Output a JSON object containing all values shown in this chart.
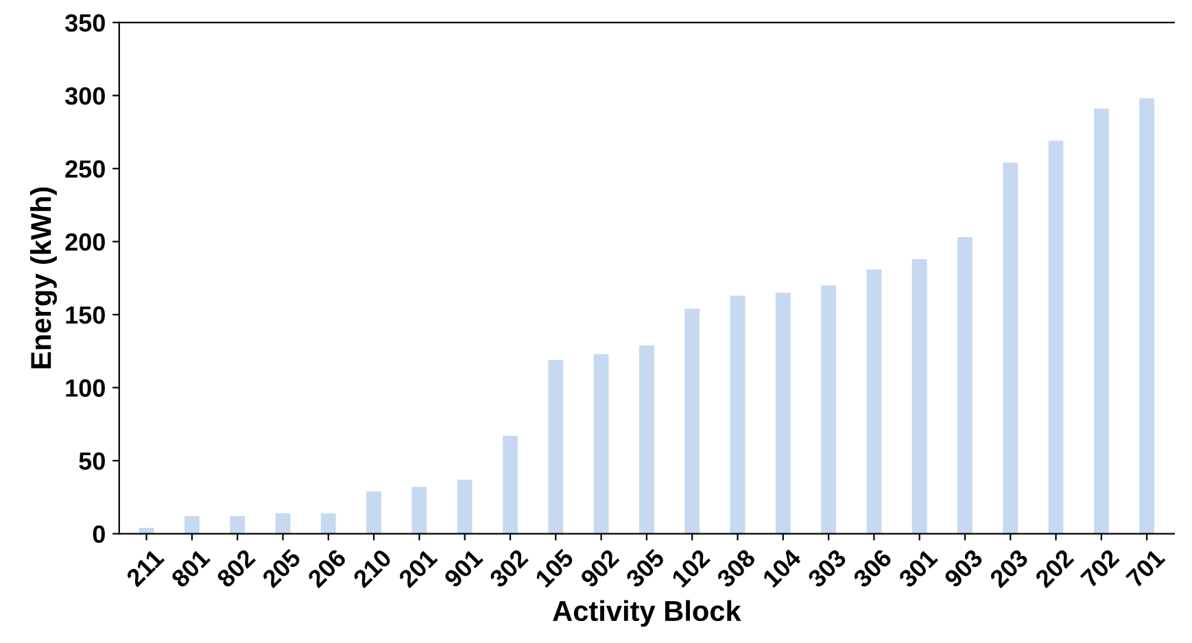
{
  "chart_data": {
    "type": "bar",
    "xlabel": "Activity Block",
    "ylabel": "Energy (kWh)",
    "categories": [
      "211",
      "801",
      "802",
      "205",
      "206",
      "210",
      "201",
      "901",
      "302",
      "105",
      "902",
      "305",
      "102",
      "308",
      "104",
      "303",
      "306",
      "301",
      "903",
      "203",
      "202",
      "702",
      "701"
    ],
    "values": [
      4,
      12,
      12,
      14,
      14,
      29,
      32,
      37,
      67,
      119,
      123,
      129,
      154,
      163,
      165,
      170,
      181,
      188,
      203,
      254,
      269,
      291,
      298
    ],
    "color": "#c6d9f1",
    "ylim": [
      0,
      350
    ],
    "yticks": [
      0,
      50,
      100,
      150,
      200,
      250,
      300,
      350
    ],
    "grid": false,
    "legend": false
  }
}
